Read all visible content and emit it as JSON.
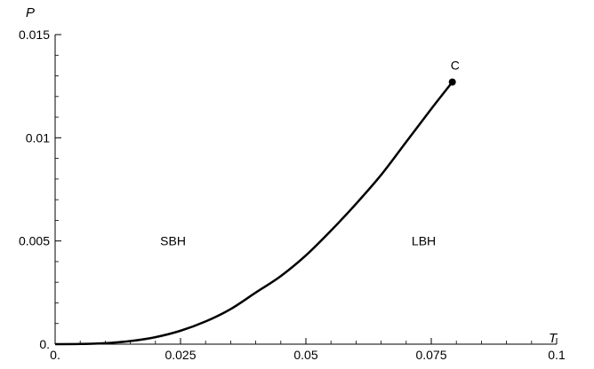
{
  "chart_data": {
    "type": "line",
    "title": "",
    "xlabel": "T",
    "ylabel": "P",
    "xlim": [
      0,
      0.1
    ],
    "ylim": [
      0,
      0.015
    ],
    "x_ticks": [
      {
        "value": 0,
        "label": "0."
      },
      {
        "value": 0.025,
        "label": "0.025"
      },
      {
        "value": 0.05,
        "label": "0.05"
      },
      {
        "value": 0.075,
        "label": "0.075"
      },
      {
        "value": 0.1,
        "label": "0.1"
      }
    ],
    "y_ticks": [
      {
        "value": 0,
        "label": "0."
      },
      {
        "value": 0.005,
        "label": "0.005"
      },
      {
        "value": 0.01,
        "label": "0.01"
      },
      {
        "value": 0.015,
        "label": "0.015"
      }
    ],
    "grid": false,
    "series": [
      {
        "x": [
          0,
          0.005,
          0.01,
          0.015,
          0.02,
          0.025,
          0.03,
          0.035,
          0.04,
          0.045,
          0.05,
          0.055,
          0.06,
          0.065,
          0.07,
          0.075,
          0.0792
        ],
        "y": [
          0,
          1e-05,
          5e-05,
          0.00015,
          0.00034,
          0.00065,
          0.0011,
          0.0017,
          0.0025,
          0.0033,
          0.0043,
          0.0055,
          0.0068,
          0.0082,
          0.0098,
          0.0114,
          0.0127
        ]
      }
    ],
    "critical_point": {
      "x": 0.0792,
      "y": 0.0127,
      "label": "C"
    },
    "annotations": [
      {
        "text": "SBH",
        "x": 0.0235,
        "y": 0.005
      },
      {
        "text": "LBH",
        "x": 0.0735,
        "y": 0.005
      }
    ]
  }
}
